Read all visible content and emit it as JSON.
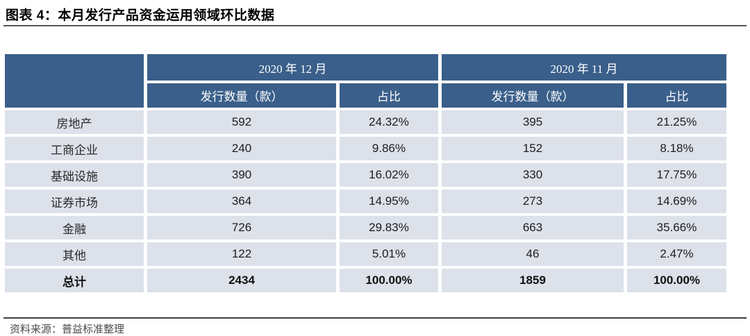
{
  "figure": {
    "title": "图表 4：本月发行产品资金运用领域环比数据"
  },
  "table": {
    "corner_label": "",
    "period_headers": [
      "2020 年 12 月",
      "2020 年 11 月"
    ],
    "sub_headers": [
      "发行数量（款）",
      "占比",
      "发行数量（款）",
      "占比"
    ],
    "rows": [
      {
        "label": "房地产",
        "dec_count": "592",
        "dec_share": "24.32%",
        "nov_count": "395",
        "nov_share": "21.25%"
      },
      {
        "label": "工商企业",
        "dec_count": "240",
        "dec_share": "9.86%",
        "nov_count": "152",
        "nov_share": "8.18%"
      },
      {
        "label": "基础设施",
        "dec_count": "390",
        "dec_share": "16.02%",
        "nov_count": "330",
        "nov_share": "17.75%"
      },
      {
        "label": "证券市场",
        "dec_count": "364",
        "dec_share": "14.95%",
        "nov_count": "273",
        "nov_share": "14.69%"
      },
      {
        "label": "金融",
        "dec_count": "726",
        "dec_share": "29.83%",
        "nov_count": "663",
        "nov_share": "35.66%"
      },
      {
        "label": "其他",
        "dec_count": "122",
        "dec_share": "5.01%",
        "nov_count": "46",
        "nov_share": "2.47%"
      },
      {
        "label": "总计",
        "dec_count": "2434",
        "dec_share": "100.00%",
        "nov_count": "1859",
        "nov_share": "100.00%"
      }
    ]
  },
  "footer": {
    "partial_note": "资料来源：普益标准整理"
  },
  "colors": {
    "header_bg": "#3A5F8A",
    "header_text": "#FFFFFF",
    "row_bg": "#DCE1EA",
    "body_text": "#1C1C1C",
    "rule": "#555555"
  }
}
